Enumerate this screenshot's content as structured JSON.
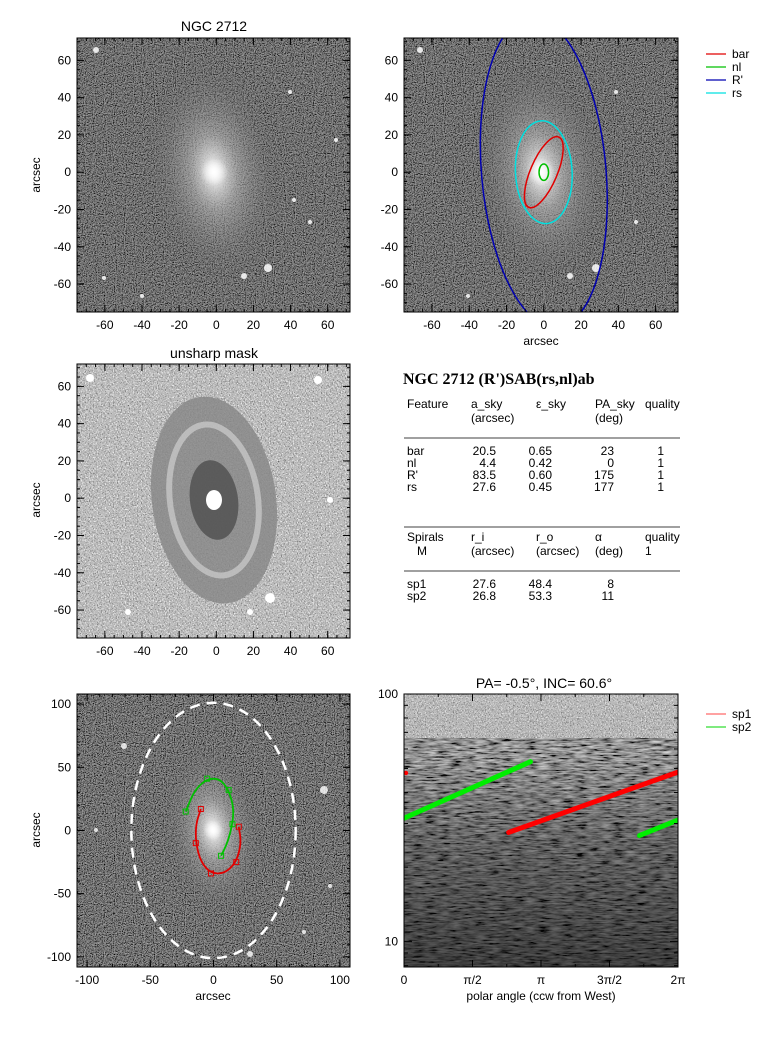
{
  "chart_data": [
    {
      "type": "image",
      "title": "NGC 2712",
      "ylabel": "arcsec",
      "xlim": [
        -75,
        72
      ],
      "ylim": [
        -75,
        72
      ],
      "xticks": [
        -60,
        -40,
        -20,
        0,
        20,
        40,
        60
      ],
      "yticks": [
        -60,
        -40,
        -20,
        0,
        20,
        40,
        60
      ],
      "galaxy": {
        "pa_deg": -10,
        "a": 45,
        "b": 28
      }
    },
    {
      "type": "image",
      "xlabel": "arcsec",
      "xlim": [
        -75,
        72
      ],
      "ylim": [
        -75,
        72
      ],
      "xticks": [
        -60,
        -40,
        -20,
        0,
        20,
        40,
        60
      ],
      "yticks": [
        -60,
        -40,
        -20,
        0,
        20,
        40,
        60
      ],
      "legend": [
        {
          "name": "bar",
          "color": "#e00000"
        },
        {
          "name": "nl",
          "color": "#00c000"
        },
        {
          "name": "R'",
          "color": "#0000b0"
        },
        {
          "name": "rs",
          "color": "#00e0e0"
        }
      ],
      "ellipses": [
        {
          "name": "R'",
          "a": 83.5,
          "eps": 0.6,
          "pa": 175,
          "color": "#0000b0"
        },
        {
          "name": "rs",
          "a": 27.6,
          "eps": 0.45,
          "pa": 177,
          "color": "#00e0e0"
        },
        {
          "name": "bar",
          "a": 20.5,
          "eps": 0.65,
          "pa": 23,
          "color": "#e00000"
        },
        {
          "name": "nl",
          "a": 4.4,
          "eps": 0.42,
          "pa": 0,
          "color": "#00c000"
        }
      ]
    },
    {
      "type": "image",
      "title": "unsharp mask",
      "ylabel": "arcsec",
      "xlim": [
        -75,
        72
      ],
      "ylim": [
        -75,
        72
      ],
      "xticks": [
        -60,
        -40,
        -20,
        0,
        20,
        40,
        60
      ],
      "yticks": [
        -60,
        -40,
        -20,
        0,
        20,
        40,
        60
      ]
    },
    {
      "type": "table",
      "title": "NGC 2712  (R')SAB(rs,nl)ab",
      "table1": {
        "headers": [
          "Feature",
          "a_sky",
          "ε_sky",
          "PA_sky",
          "quality"
        ],
        "subheaders": [
          "",
          "(arcsec)",
          "",
          "(deg)",
          ""
        ],
        "rows": [
          [
            "bar",
            "20.5",
            "0.65",
            "23",
            "1"
          ],
          [
            "nl",
            "4.4",
            "0.42",
            "0",
            "1"
          ],
          [
            "R'",
            "83.5",
            "0.60",
            "175",
            "1"
          ],
          [
            "rs",
            "27.6",
            "0.45",
            "177",
            "1"
          ]
        ]
      },
      "table2": {
        "headers": [
          "Spirals",
          "r_i",
          "r_o",
          "α",
          "quality"
        ],
        "subheaders": [
          "M",
          "(arcsec)",
          "(arcsec)",
          "(deg)",
          "1"
        ],
        "rows": [
          [
            "sp1",
            "27.6",
            "48.4",
            "8",
            ""
          ],
          [
            "sp2",
            "26.8",
            "53.3",
            "11",
            ""
          ]
        ]
      }
    },
    {
      "type": "image",
      "xlabel": "arcsec",
      "ylabel": "arcsec",
      "xlim": [
        -108,
        108
      ],
      "ylim": [
        -108,
        108
      ],
      "xticks": [
        -100,
        -50,
        0,
        50,
        100
      ],
      "yticks": [
        -100,
        -50,
        0,
        50,
        100
      ],
      "deprojection_ellipse": {
        "a": 101,
        "b": 65,
        "color": "#ffffff",
        "dashed": true
      },
      "series": [
        {
          "name": "sp2",
          "color": "#00c000",
          "points": [
            [
              -22,
              15
            ],
            [
              -15,
              32
            ],
            [
              -5,
              41
            ],
            [
              5,
              41
            ],
            [
              12,
              32
            ],
            [
              16,
              18
            ],
            [
              15,
              5
            ],
            [
              11,
              -10
            ],
            [
              6,
              -20
            ]
          ]
        },
        {
          "name": "sp1",
          "color": "#e00000",
          "points": [
            [
              -10,
              17
            ],
            [
              -14,
              5
            ],
            [
              -14,
              -10
            ],
            [
              -10,
              -25
            ],
            [
              -2,
              -34
            ],
            [
              9,
              -34
            ],
            [
              18,
              -25
            ],
            [
              22,
              -10
            ],
            [
              20,
              3
            ]
          ]
        }
      ]
    },
    {
      "type": "line",
      "title": "PA=  -0.5°, INC=  60.6°",
      "xlabel": "polar angle (ccw from West)",
      "xlim": [
        0,
        6.2832
      ],
      "ylim": [
        7.9,
        100
      ],
      "ylog": true,
      "xticks": [
        0,
        1.5708,
        3.1416,
        4.7124,
        6.2832
      ],
      "xtick_labels": [
        "0",
        "π/2",
        "π",
        "3π/2",
        "2π"
      ],
      "yticks": [
        10,
        100
      ],
      "ytick_labels": [
        "10",
        "100"
      ],
      "legend": [
        {
          "name": "sp1",
          "color": "#ff6a6a"
        },
        {
          "name": "sp2",
          "color": "#33dd33"
        }
      ],
      "series": [
        {
          "name": "sp1",
          "color": "#ff0000",
          "x": [
            2.4,
            6.2832
          ],
          "y": [
            27.6,
            48.4
          ]
        },
        {
          "name": "sp2",
          "color": "#00ee00",
          "x": [
            0,
            2.9
          ],
          "y": [
            31.5,
            53.3
          ]
        },
        {
          "name": "sp2-wrap",
          "color": "#00ee00",
          "x": [
            5.4,
            6.2832
          ],
          "y": [
            26.8,
            31.0
          ]
        }
      ]
    }
  ]
}
